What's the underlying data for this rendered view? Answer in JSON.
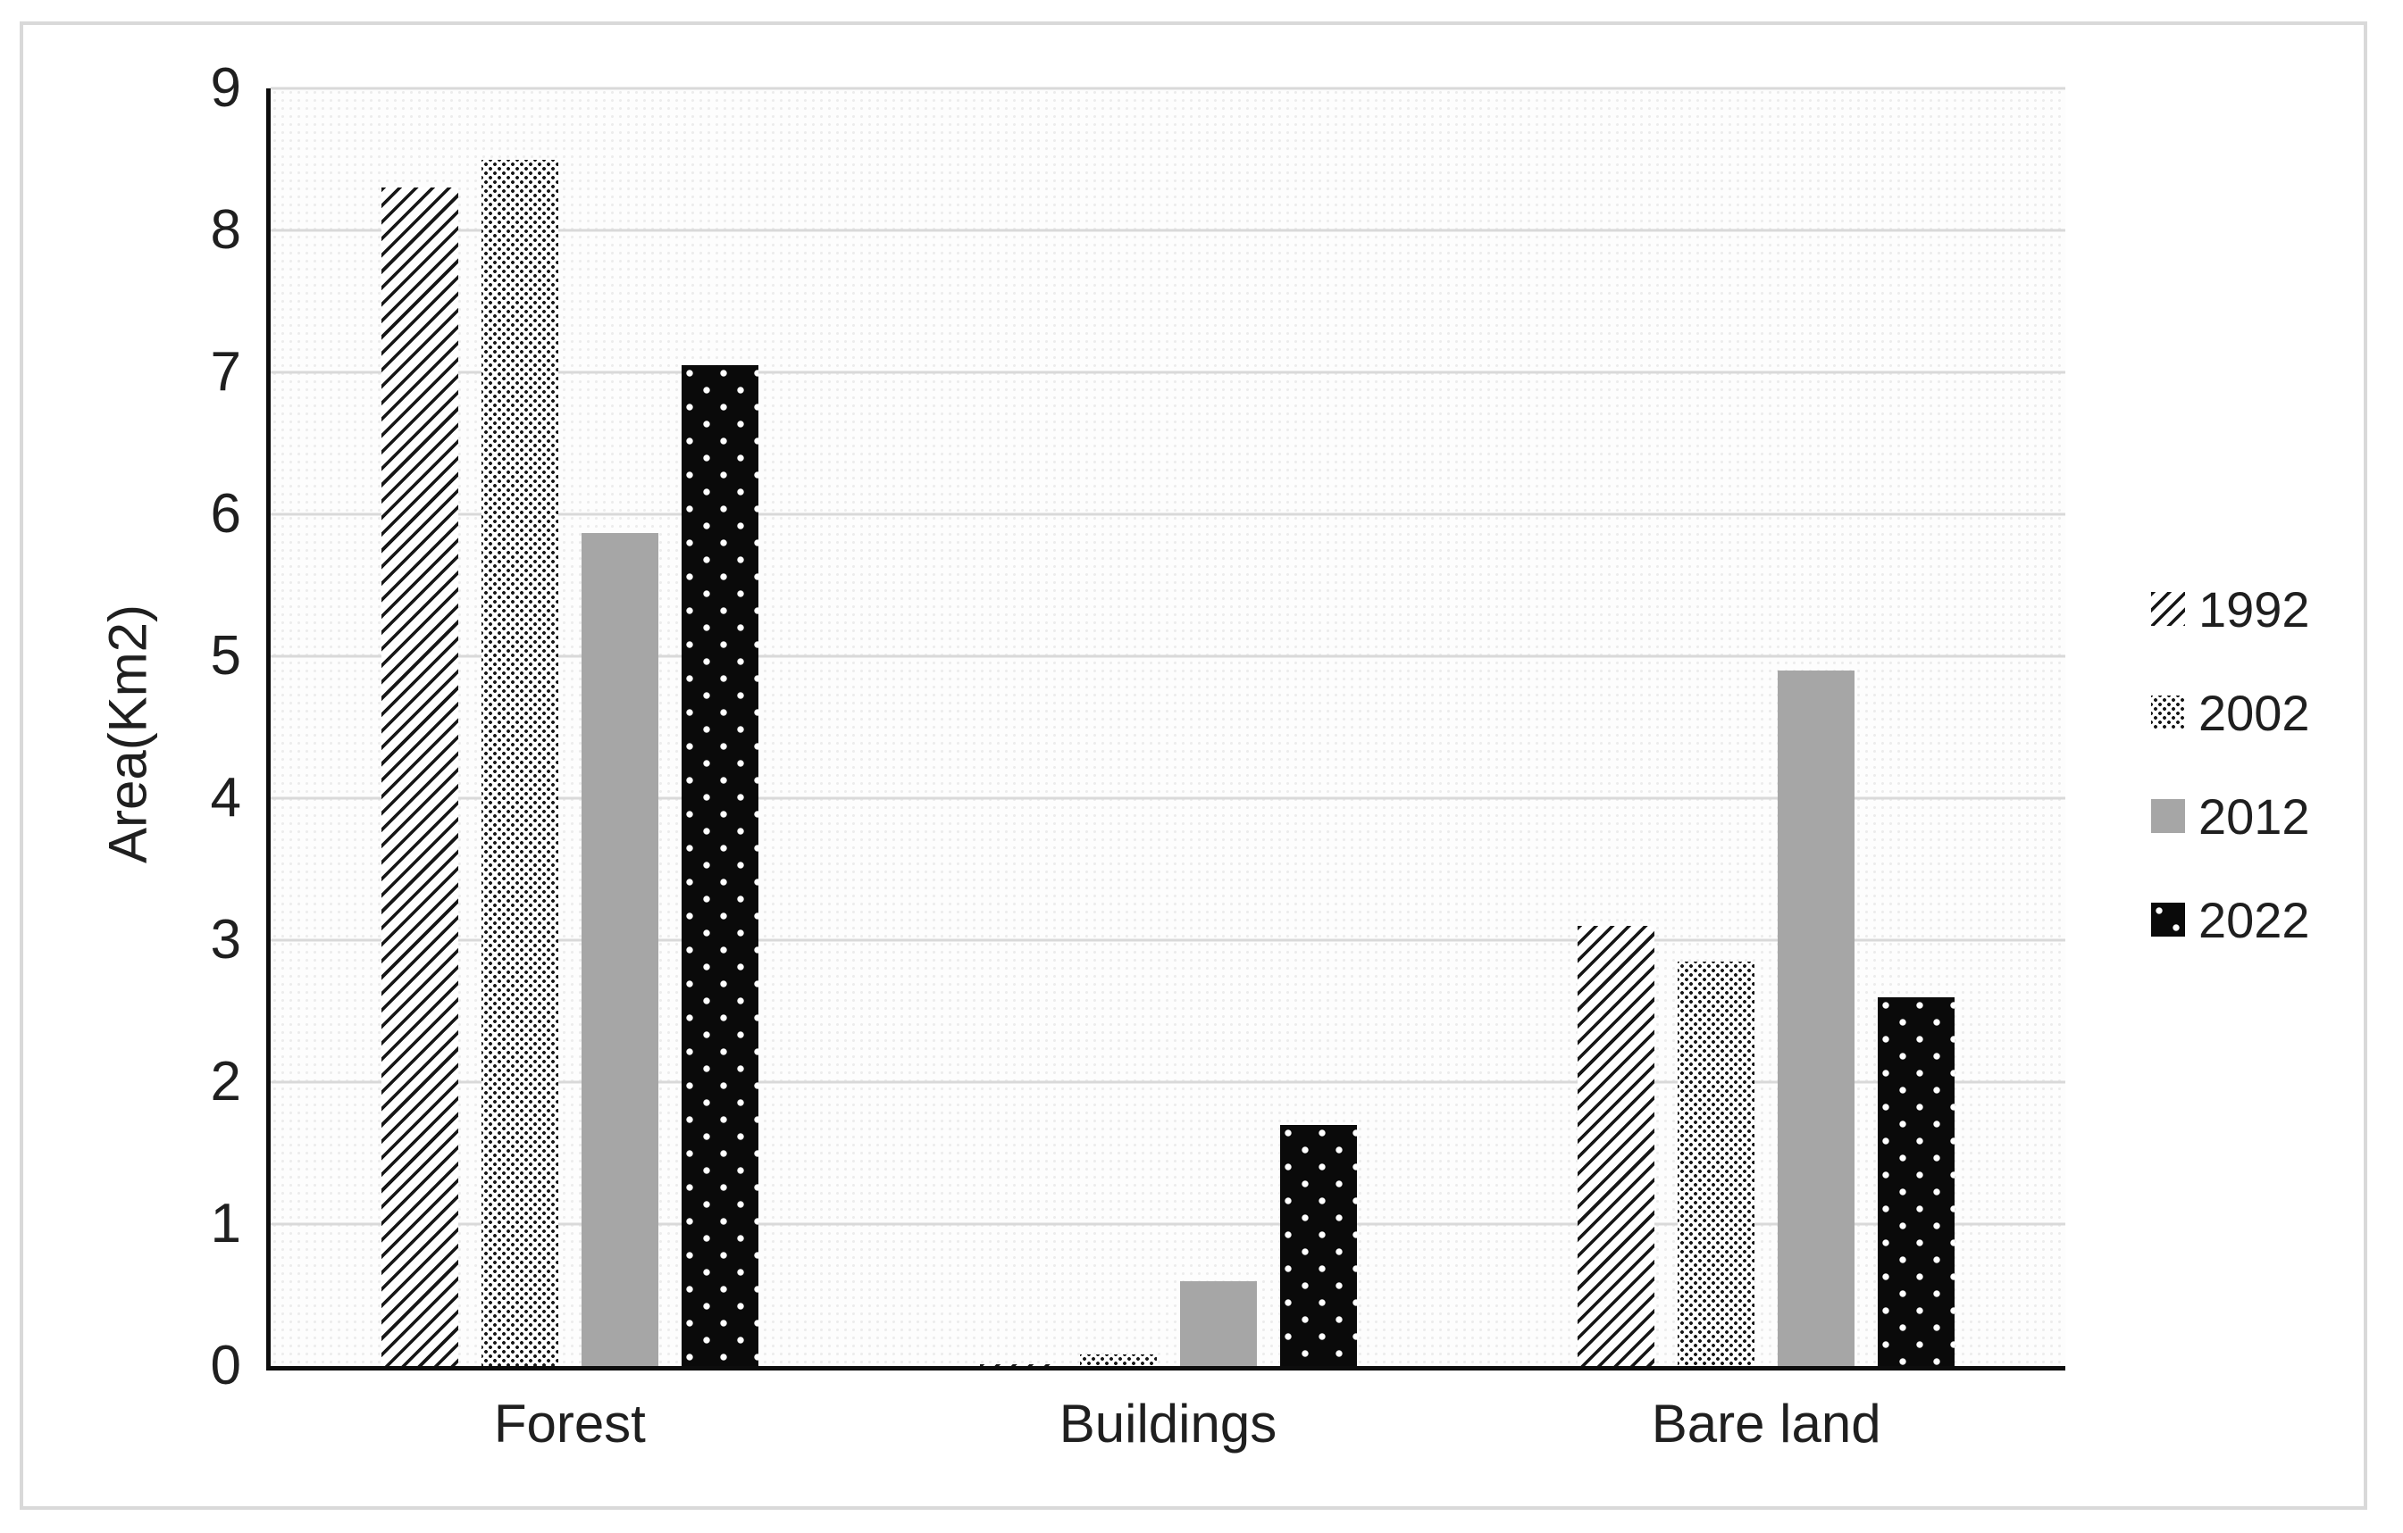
{
  "chart_data": {
    "type": "bar",
    "title": "",
    "ylabel": "Area(Km2)",
    "xlabel": "",
    "ylim": [
      0,
      9
    ],
    "ytick_step": 1,
    "yticks": [
      "0",
      "1",
      "2",
      "3",
      "4",
      "5",
      "6",
      "7",
      "8",
      "9"
    ],
    "grid": true,
    "legend_position": "right",
    "categories": [
      "Forest",
      "Buildings",
      "Bare land"
    ],
    "series": [
      {
        "name": "1992",
        "pattern": "diagonal-hatch",
        "color": "#161616",
        "values": [
          8.3,
          0.01,
          3.1
        ]
      },
      {
        "name": "2002",
        "pattern": "dense-dots",
        "color": "#141414",
        "values": [
          8.5,
          0.08,
          2.85
        ]
      },
      {
        "name": "2012",
        "pattern": "solid-gray",
        "color": "#a6a6a6",
        "values": [
          5.87,
          0.6,
          4.9
        ]
      },
      {
        "name": "2022",
        "pattern": "black-white-dots",
        "color": "#0a0a0a",
        "values": [
          7.05,
          1.7,
          2.6
        ]
      }
    ]
  },
  "colors": {
    "gridline": "#d9d9d9",
    "axis_line": "#0d0d0d",
    "frame_border": "#d9d9d9",
    "plot_texture_dot": "#ececec",
    "text": "#1f1f1f"
  }
}
